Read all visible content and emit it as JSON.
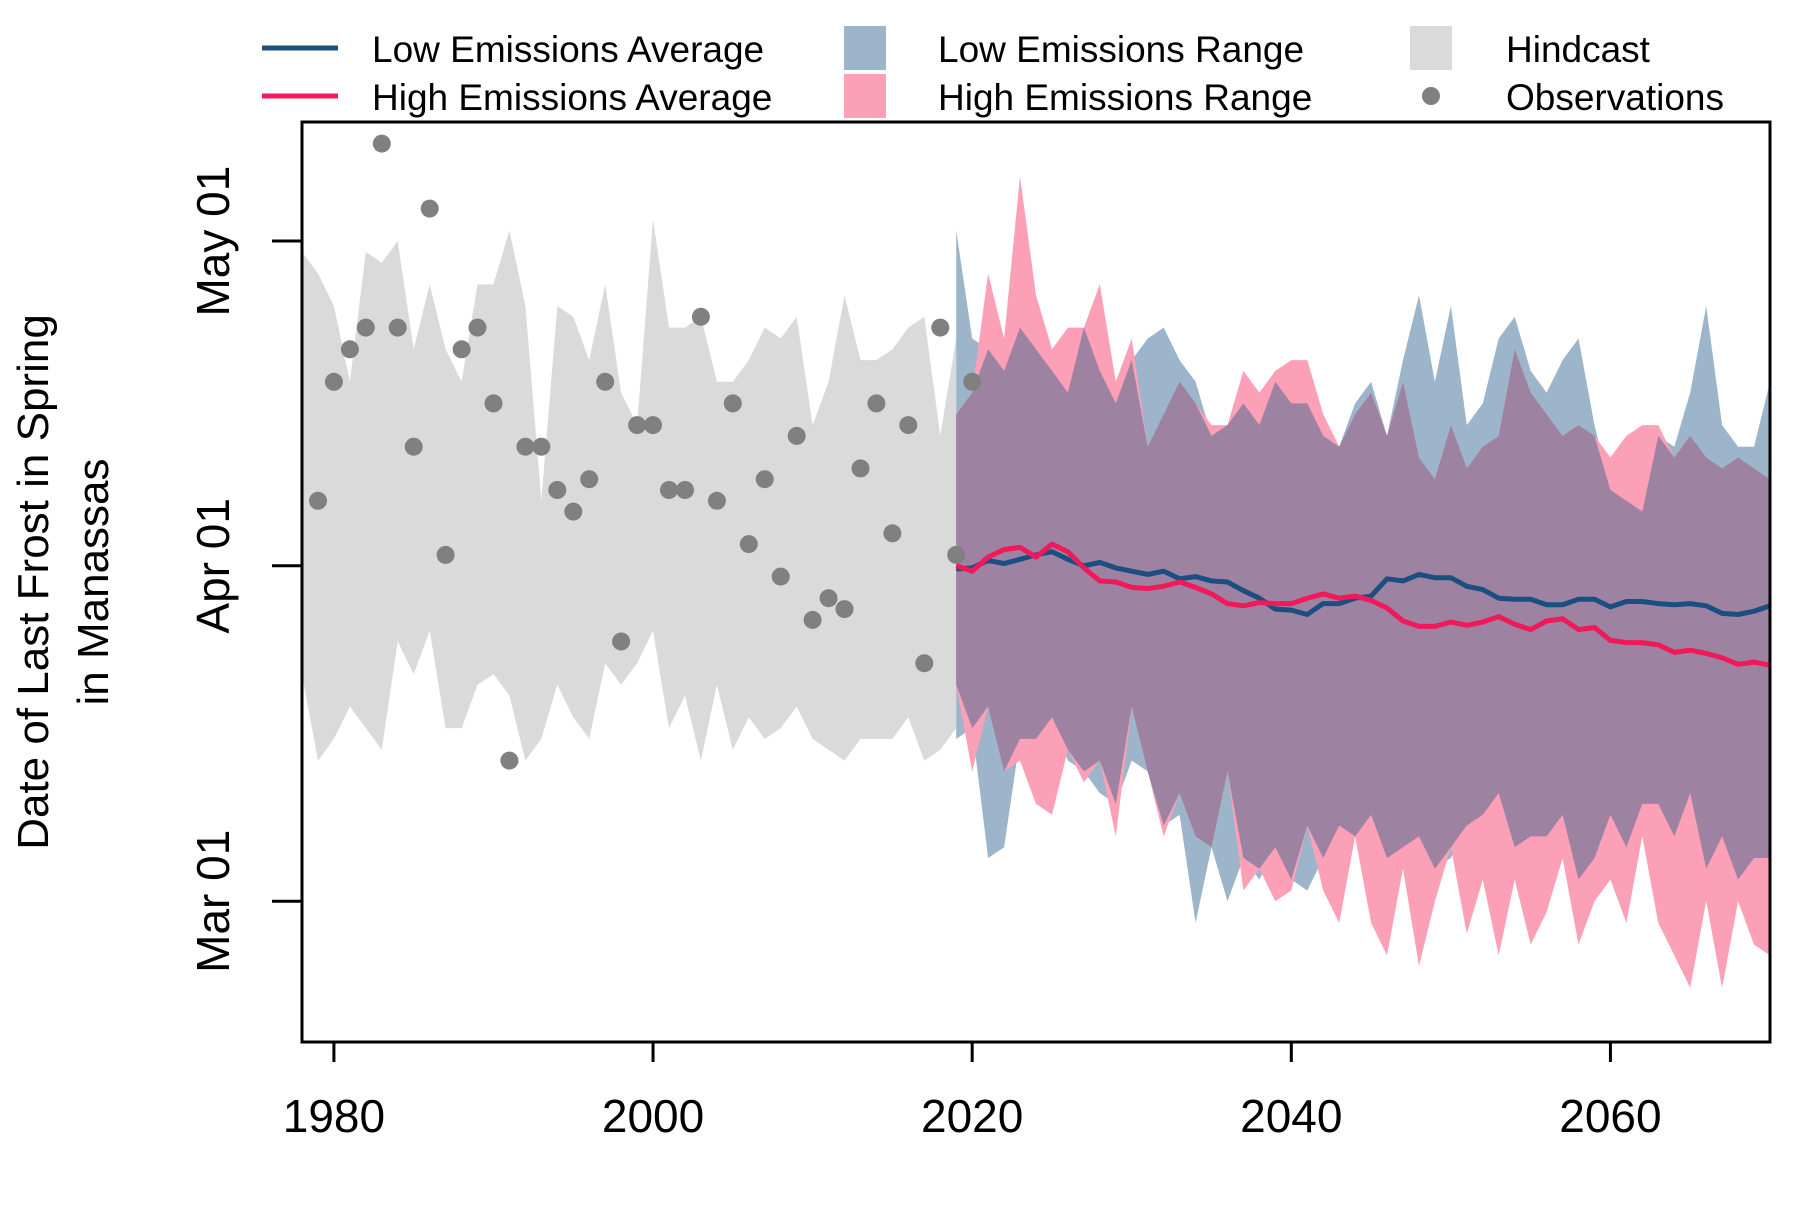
{
  "chart_data": {
    "type": "line",
    "ylabel_lines": [
      "Date of Last Frost in Spring",
      "in Manassas"
    ],
    "xlim": [
      1978,
      2070
    ],
    "ylim_day_of_year": [
      47,
      132
    ],
    "x_ticks": [
      1980,
      2000,
      2020,
      2040,
      2060
    ],
    "y_ticks": [
      {
        "label": "Mar 01",
        "day": 60
      },
      {
        "label": "Apr 01",
        "day": 91
      },
      {
        "label": "May 01",
        "day": 121
      }
    ],
    "legend": {
      "placement": "top, outside plot, three columns",
      "entries": [
        {
          "label": "Low Emissions Average",
          "kind": "line",
          "color": "#1a4f80"
        },
        {
          "label": "High Emissions Average",
          "kind": "line",
          "color": "#f0195a"
        },
        {
          "label": "Low Emissions Range",
          "kind": "fill",
          "color": "#9db5ca"
        },
        {
          "label": "High Emissions Range",
          "kind": "fill",
          "color": "#fca0b8"
        },
        {
          "label": "Hindcast",
          "kind": "fill",
          "color": "#dadada"
        },
        {
          "label": "Observations",
          "kind": "point",
          "color": "#808080"
        }
      ]
    },
    "colors": {
      "low_range": "#9db5ca",
      "high_range": "#fca0b8",
      "overlap": "#9d82a2",
      "hindcast": "#dadada",
      "low_avg": "#1a4f80",
      "high_avg": "#f0195a",
      "observations": "#808080"
    },
    "hindcast": {
      "x": [
        1978,
        1979,
        1980,
        1981,
        1982,
        1983,
        1984,
        1985,
        1986,
        1987,
        1988,
        1989,
        1990,
        1991,
        1992,
        1993,
        1994,
        1995,
        1996,
        1997,
        1998,
        1999,
        2000,
        2001,
        2002,
        2003,
        2004,
        2005,
        2006,
        2007,
        2008,
        2009,
        2010,
        2011,
        2012,
        2013,
        2014,
        2015,
        2016,
        2017,
        2018,
        2019
      ],
      "upper": [
        120,
        118,
        115,
        108,
        120,
        119,
        121,
        111,
        117,
        111,
        108,
        117,
        117,
        122,
        115,
        97,
        115,
        114,
        110,
        117,
        107,
        104,
        123,
        113,
        113,
        114,
        108,
        108,
        110,
        113,
        112,
        114,
        104,
        108,
        116,
        110,
        110,
        111,
        113,
        114,
        103,
        112
      ],
      "lower": [
        81,
        73,
        75,
        78,
        76,
        74,
        84,
        81,
        85,
        76,
        76,
        80,
        81,
        79,
        73,
        75,
        80,
        77,
        75,
        82,
        80,
        82,
        85,
        76,
        79,
        73,
        80,
        74,
        77,
        75,
        76,
        78,
        75,
        74,
        73,
        75,
        75,
        75,
        77,
        73,
        74,
        76
      ]
    },
    "low_range": {
      "x": [
        2019,
        2020,
        2021,
        2022,
        2023,
        2024,
        2025,
        2026,
        2027,
        2028,
        2029,
        2030,
        2031,
        2032,
        2033,
        2034,
        2035,
        2036,
        2037,
        2038,
        2039,
        2040,
        2041,
        2042,
        2043,
        2044,
        2045,
        2046,
        2047,
        2048,
        2049,
        2050,
        2051,
        2052,
        2053,
        2054,
        2055,
        2056,
        2057,
        2058,
        2059,
        2060,
        2061,
        2062,
        2063,
        2064,
        2065,
        2066,
        2067,
        2068,
        2069,
        2070
      ],
      "upper": [
        122,
        112,
        111,
        109,
        113,
        111,
        109,
        107,
        113,
        109,
        106,
        110,
        112,
        113,
        110,
        108,
        103,
        104,
        106,
        104,
        108,
        106,
        106,
        103,
        102,
        106,
        108,
        103,
        110,
        116,
        108,
        115,
        104,
        106,
        112,
        114,
        109,
        107,
        110,
        112,
        104,
        98,
        97,
        96,
        103,
        102,
        107,
        115,
        104,
        102,
        102,
        108
      ],
      "lower": [
        75,
        76,
        64,
        65,
        75,
        75,
        77,
        73,
        72,
        70,
        69,
        73,
        72,
        67,
        68,
        58,
        65,
        60,
        64,
        62,
        65,
        62,
        61,
        64,
        67,
        66,
        68,
        64,
        65,
        66,
        63,
        64,
        67,
        68,
        70,
        65,
        66,
        66,
        68,
        62,
        64,
        68,
        65,
        69,
        69,
        66,
        70,
        63,
        66,
        62,
        64,
        64
      ]
    },
    "high_range": {
      "x": [
        2019,
        2020,
        2021,
        2022,
        2023,
        2024,
        2025,
        2026,
        2027,
        2028,
        2029,
        2030,
        2031,
        2032,
        2033,
        2034,
        2035,
        2036,
        2037,
        2038,
        2039,
        2040,
        2041,
        2042,
        2043,
        2044,
        2045,
        2046,
        2047,
        2048,
        2049,
        2050,
        2051,
        2052,
        2053,
        2054,
        2055,
        2056,
        2057,
        2058,
        2059,
        2060,
        2061,
        2062,
        2063,
        2064,
        2065,
        2066,
        2067,
        2068,
        2069,
        2070
      ],
      "upper": [
        105,
        107,
        118,
        112,
        127,
        116,
        111,
        113,
        113,
        117,
        108,
        112,
        102,
        105,
        108,
        106,
        104,
        104,
        109,
        107,
        109,
        110,
        110,
        105,
        102,
        105,
        107,
        103,
        108,
        101,
        99,
        104,
        100,
        102,
        103,
        111,
        107,
        105,
        103,
        104,
        103,
        101,
        103,
        104,
        104,
        101,
        103,
        101,
        100,
        101,
        100,
        99
      ],
      "lower": [
        80,
        72,
        78,
        72,
        73,
        69,
        68,
        74,
        71,
        73,
        66,
        78,
        72,
        66,
        70,
        66,
        65,
        72,
        61,
        63,
        60,
        61,
        67,
        61,
        58,
        66,
        58,
        55,
        63,
        54,
        60,
        65,
        57,
        62,
        55,
        62,
        56,
        59,
        64,
        56,
        60,
        62,
        58,
        66,
        58,
        55,
        52,
        60,
        52,
        60,
        56,
        55
      ]
    },
    "low_avg": {
      "x": [
        2019,
        2020,
        2021,
        2022,
        2023,
        2024,
        2025,
        2026,
        2027,
        2028,
        2029,
        2030,
        2031,
        2032,
        2033,
        2034,
        2035,
        2036,
        2037,
        2038,
        2039,
        2040,
        2041,
        2042,
        2043,
        2044,
        2045,
        2046,
        2047,
        2048,
        2049,
        2050,
        2051,
        2052,
        2053,
        2054,
        2055,
        2056,
        2057,
        2058,
        2059,
        2060,
        2061,
        2062,
        2063,
        2064,
        2065,
        2066,
        2067,
        2068,
        2069,
        2070
      ],
      "values": [
        90.7,
        90.8,
        91.5,
        91.2,
        91.6,
        92.0,
        92.3,
        91.6,
        91.0,
        91.3,
        90.8,
        90.5,
        90.2,
        90.5,
        89.8,
        90.0,
        89.6,
        89.5,
        88.7,
        88.0,
        87.0,
        86.9,
        86.5,
        87.5,
        87.5,
        88.0,
        88.2,
        89.8,
        89.6,
        90.2,
        89.9,
        89.9,
        89.1,
        88.8,
        88.0,
        87.9,
        87.9,
        87.4,
        87.4,
        87.9,
        87.9,
        87.2,
        87.7,
        87.7,
        87.5,
        87.4,
        87.5,
        87.3,
        86.6,
        86.5,
        86.8,
        87.3
      ]
    },
    "high_avg": {
      "x": [
        2019,
        2020,
        2021,
        2022,
        2023,
        2024,
        2025,
        2026,
        2027,
        2028,
        2029,
        2030,
        2031,
        2032,
        2033,
        2034,
        2035,
        2036,
        2037,
        2038,
        2039,
        2040,
        2041,
        2042,
        2043,
        2044,
        2045,
        2046,
        2047,
        2048,
        2049,
        2050,
        2051,
        2052,
        2053,
        2054,
        2055,
        2056,
        2057,
        2058,
        2059,
        2060,
        2061,
        2062,
        2063,
        2064,
        2065,
        2066,
        2067,
        2068,
        2069,
        2070
      ],
      "values": [
        91.0,
        90.5,
        91.8,
        92.5,
        92.7,
        91.8,
        93.0,
        92.3,
        90.8,
        89.6,
        89.5,
        89.0,
        88.9,
        89.1,
        89.5,
        89.0,
        88.4,
        87.5,
        87.3,
        87.6,
        87.5,
        87.5,
        88.0,
        88.4,
        88.0,
        88.2,
        87.8,
        87.1,
        85.9,
        85.4,
        85.4,
        85.8,
        85.5,
        85.8,
        86.3,
        85.6,
        85.1,
        85.9,
        86.1,
        85.1,
        85.3,
        84.1,
        83.9,
        83.9,
        83.7,
        83.0,
        83.2,
        82.9,
        82.5,
        81.9,
        82.1,
        81.8
      ]
    },
    "observations": {
      "x": [
        1979,
        1980,
        1981,
        1982,
        1983,
        1984,
        1985,
        1986,
        1987,
        1988,
        1989,
        1990,
        1991,
        1992,
        1993,
        1994,
        1995,
        1996,
        1997,
        1998,
        1999,
        2000,
        2001,
        2002,
        2003,
        2004,
        2005,
        2006,
        2007,
        2008,
        2009,
        2010,
        2011,
        2012,
        2013,
        2014,
        2015,
        2016,
        2017,
        2018,
        2019,
        2020
      ],
      "y": [
        97,
        108,
        111,
        113,
        130,
        113,
        102,
        124,
        92,
        111,
        113,
        106,
        73,
        102,
        102,
        98,
        96,
        99,
        108,
        84,
        104,
        104,
        98,
        98,
        114,
        97,
        106,
        93,
        99,
        90,
        103,
        86,
        88,
        87,
        100,
        106,
        94,
        104,
        82,
        113,
        92,
        108
      ]
    }
  }
}
